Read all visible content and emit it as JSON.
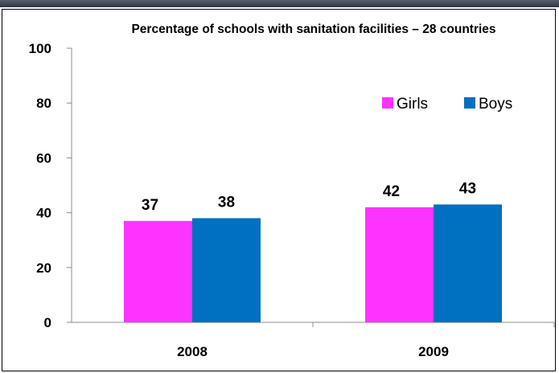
{
  "chart_data": {
    "type": "bar",
    "title": "Percentage of schools with sanitation facilities – 28 countries",
    "categories": [
      "2008",
      "2009"
    ],
    "series": [
      {
        "name": "Girls",
        "values": [
          37,
          42
        ],
        "color": "#ff33ff"
      },
      {
        "name": "Boys",
        "values": [
          38,
          43
        ],
        "color": "#0070c0"
      }
    ],
    "data_labels": [
      "37",
      "38",
      "42",
      "43"
    ],
    "ylim": [
      0,
      100
    ],
    "yticks": [
      0,
      20,
      40,
      60,
      80,
      100
    ],
    "xlabel": "",
    "ylabel": "",
    "grid": false,
    "legend_position": "top-right"
  }
}
